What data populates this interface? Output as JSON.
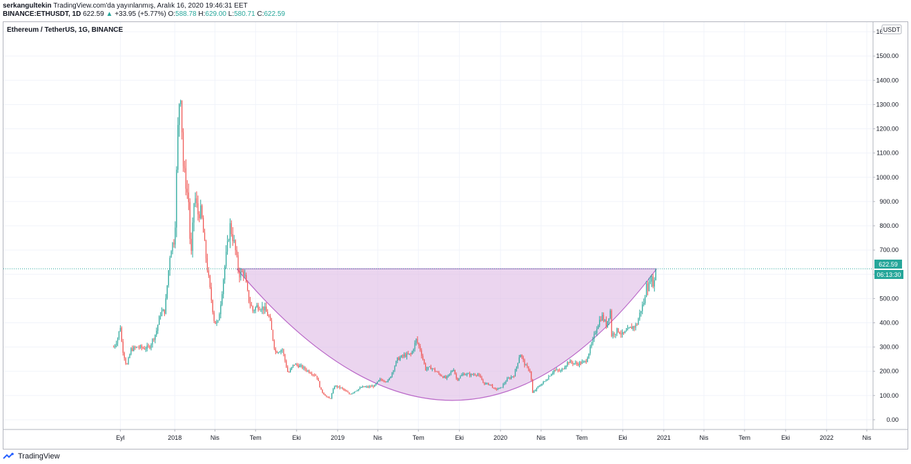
{
  "header": {
    "author": "serkangultekin",
    "published": "TradingView.com'da yayınlanmış, Aralık 16, 2020 19:46:31 EET",
    "symbol": "BINANCE:ETHUSDT, 1D",
    "last": "622.59",
    "change_arrow": "▲",
    "change": "+33.95 (+5.77%)",
    "o_label": "O:",
    "o_value": "588.78",
    "h_label": "H:",
    "h_value": "629.00",
    "l_label": "L:",
    "l_value": "580.71",
    "c_label": "C:",
    "c_value": "622.59"
  },
  "chart_title": "Ethereum / TetherUS, 1G, BINANCE",
  "currency_button": "USDT",
  "last_price_badge": "622.59",
  "countdown_badge": "06:13:30",
  "footer": {
    "brand": "TradingView",
    "icon": "tradingview-logo-icon"
  },
  "colors": {
    "up": "#26a69a",
    "down": "#ef5350",
    "pattern_fill": "#e1bee7",
    "pattern_stroke": "#ba68c8",
    "price_line": "#26a69a"
  },
  "chart_data": {
    "type": "candlestick",
    "y_ticks": [
      "0.00",
      "100.00",
      "200.00",
      "300.00",
      "400.00",
      "500.00",
      "600.00",
      "700.00",
      "800.00",
      "900.00",
      "1000.00",
      "1100.00",
      "1200.00",
      "1300.00",
      "1400.00",
      "1500.00",
      "1600.00"
    ],
    "ylim": [
      -40,
      1640
    ],
    "x_ticks": [
      {
        "date": "2017-09-01",
        "label": "Eyl"
      },
      {
        "date": "2018-01-01",
        "label": "2018"
      },
      {
        "date": "2018-04-01",
        "label": "Nis"
      },
      {
        "date": "2018-07-01",
        "label": "Tem"
      },
      {
        "date": "2018-10-01",
        "label": "Eki"
      },
      {
        "date": "2019-01-01",
        "label": "2019"
      },
      {
        "date": "2019-04-01",
        "label": "Nis"
      },
      {
        "date": "2019-07-01",
        "label": "Tem"
      },
      {
        "date": "2019-10-01",
        "label": "Eki"
      },
      {
        "date": "2020-01-01",
        "label": "2020"
      },
      {
        "date": "2020-04-01",
        "label": "Nis"
      },
      {
        "date": "2020-07-01",
        "label": "Tem"
      },
      {
        "date": "2020-10-01",
        "label": "Eki"
      },
      {
        "date": "2021-01-01",
        "label": "2021"
      },
      {
        "date": "2021-04-01",
        "label": "Nis"
      },
      {
        "date": "2021-07-01",
        "label": "Tem"
      },
      {
        "date": "2021-10-01",
        "label": "Eki"
      },
      {
        "date": "2022-01-01",
        "label": "2022"
      },
      {
        "date": "2022-04-01",
        "label": "Nis"
      }
    ],
    "x_range": [
      "2016-12-13",
      "2022-04-15"
    ],
    "price_series": [
      [
        "2017-08-17",
        300
      ],
      [
        "2017-08-25",
        330
      ],
      [
        "2017-09-01",
        385
      ],
      [
        "2017-09-05",
        300
      ],
      [
        "2017-09-15",
        220
      ],
      [
        "2017-09-25",
        290
      ],
      [
        "2017-10-10",
        300
      ],
      [
        "2017-10-25",
        295
      ],
      [
        "2017-11-05",
        300
      ],
      [
        "2017-11-20",
        360
      ],
      [
        "2017-11-30",
        440
      ],
      [
        "2017-12-10",
        450
      ],
      [
        "2017-12-22",
        700
      ],
      [
        "2018-01-01",
        750
      ],
      [
        "2018-01-07",
        1150
      ],
      [
        "2018-01-10",
        1300
      ],
      [
        "2018-01-14",
        1350
      ],
      [
        "2018-01-20",
        1050
      ],
      [
        "2018-02-01",
        900
      ],
      [
        "2018-02-06",
        650
      ],
      [
        "2018-02-14",
        930
      ],
      [
        "2018-02-22",
        850
      ],
      [
        "2018-03-01",
        860
      ],
      [
        "2018-03-10",
        700
      ],
      [
        "2018-03-20",
        550
      ],
      [
        "2018-03-31",
        400
      ],
      [
        "2018-04-08",
        400
      ],
      [
        "2018-04-15",
        500
      ],
      [
        "2018-04-24",
        650
      ],
      [
        "2018-05-05",
        800
      ],
      [
        "2018-05-15",
        720
      ],
      [
        "2018-05-25",
        600
      ],
      [
        "2018-06-05",
        610
      ],
      [
        "2018-06-15",
        500
      ],
      [
        "2018-06-25",
        450
      ],
      [
        "2018-07-05",
        470
      ],
      [
        "2018-07-20",
        460
      ],
      [
        "2018-08-01",
        420
      ],
      [
        "2018-08-14",
        280
      ],
      [
        "2018-08-30",
        290
      ],
      [
        "2018-09-12",
        190
      ],
      [
        "2018-09-25",
        230
      ],
      [
        "2018-10-10",
        220
      ],
      [
        "2018-10-28",
        200
      ],
      [
        "2018-11-15",
        180
      ],
      [
        "2018-11-25",
        120
      ],
      [
        "2018-12-07",
        95
      ],
      [
        "2018-12-15",
        85
      ],
      [
        "2018-12-25",
        140
      ],
      [
        "2019-01-10",
        130
      ],
      [
        "2019-01-28",
        105
      ],
      [
        "2019-02-10",
        120
      ],
      [
        "2019-02-25",
        135
      ],
      [
        "2019-03-10",
        135
      ],
      [
        "2019-03-25",
        140
      ],
      [
        "2019-04-05",
        165
      ],
      [
        "2019-04-25",
        160
      ],
      [
        "2019-05-15",
        250
      ],
      [
        "2019-05-30",
        265
      ],
      [
        "2019-06-15",
        270
      ],
      [
        "2019-06-26",
        330
      ],
      [
        "2019-07-05",
        290
      ],
      [
        "2019-07-17",
        210
      ],
      [
        "2019-07-30",
        215
      ],
      [
        "2019-08-15",
        190
      ],
      [
        "2019-09-01",
        170
      ],
      [
        "2019-09-18",
        210
      ],
      [
        "2019-09-25",
        165
      ],
      [
        "2019-10-10",
        190
      ],
      [
        "2019-10-27",
        185
      ],
      [
        "2019-11-10",
        190
      ],
      [
        "2019-11-25",
        150
      ],
      [
        "2019-12-10",
        145
      ],
      [
        "2019-12-18",
        125
      ],
      [
        "2020-01-01",
        130
      ],
      [
        "2020-01-15",
        165
      ],
      [
        "2020-02-01",
        185
      ],
      [
        "2020-02-14",
        275
      ],
      [
        "2020-02-25",
        225
      ],
      [
        "2020-03-08",
        200
      ],
      [
        "2020-03-13",
        110
      ],
      [
        "2020-03-25",
        135
      ],
      [
        "2020-04-10",
        160
      ],
      [
        "2020-04-30",
        205
      ],
      [
        "2020-05-15",
        200
      ],
      [
        "2020-06-01",
        240
      ],
      [
        "2020-06-20",
        230
      ],
      [
        "2020-07-10",
        240
      ],
      [
        "2020-07-25",
        320
      ],
      [
        "2020-08-05",
        390
      ],
      [
        "2020-08-15",
        430
      ],
      [
        "2020-08-25",
        390
      ],
      [
        "2020-09-03",
        450
      ],
      [
        "2020-09-06",
        350
      ],
      [
        "2020-09-20",
        370
      ],
      [
        "2020-10-01",
        350
      ],
      [
        "2020-10-20",
        380
      ],
      [
        "2020-11-01",
        390
      ],
      [
        "2020-11-10",
        450
      ],
      [
        "2020-11-20",
        500
      ],
      [
        "2020-11-24",
        600
      ],
      [
        "2020-11-27",
        520
      ],
      [
        "2020-12-01",
        590
      ],
      [
        "2020-12-10",
        560
      ],
      [
        "2020-12-16",
        622.59
      ]
    ],
    "pattern": {
      "type": "rounded-bottom",
      "start": [
        "2018-05-20",
        622.59
      ],
      "end": [
        "2020-12-16",
        622.59
      ],
      "bottom": [
        "2019-09-15",
        80
      ]
    },
    "last_price": 622.59
  }
}
